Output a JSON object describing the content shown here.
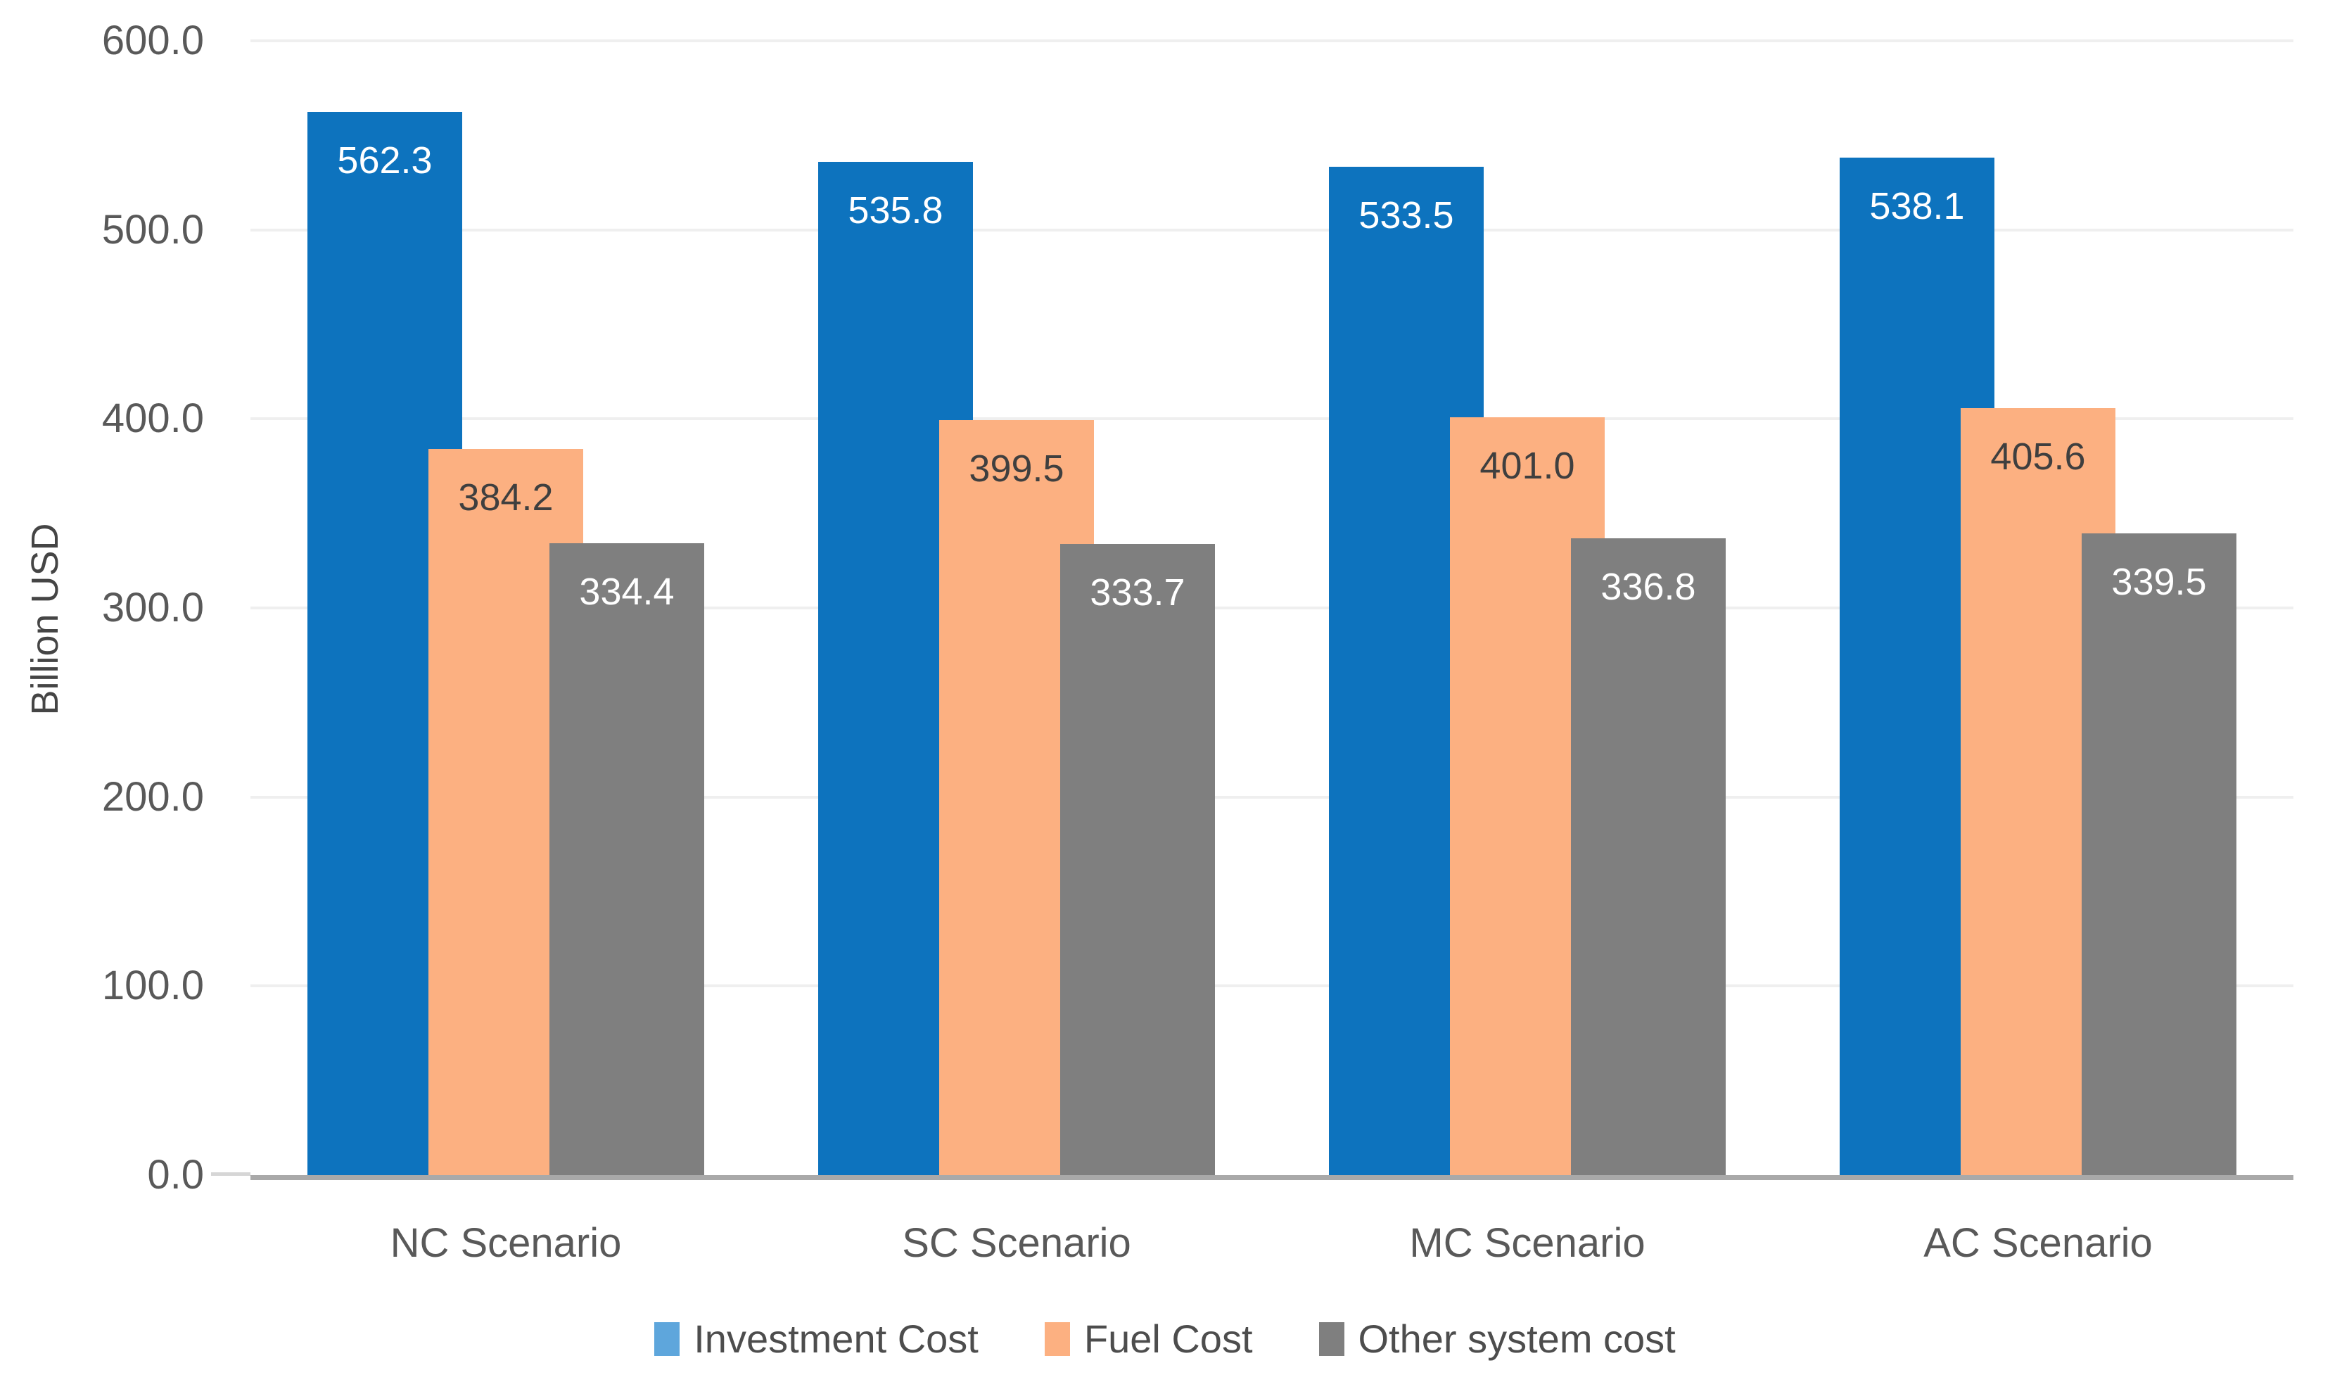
{
  "chart_data": {
    "type": "bar",
    "title": "",
    "ylabel": "Billion USD",
    "xlabel": "",
    "ylim": [
      0,
      600
    ],
    "ytick_step": 100,
    "ytick_labels": [
      "0.0",
      "100.0",
      "200.0",
      "300.0",
      "400.0",
      "500.0",
      "600.0"
    ],
    "grid": true,
    "legend_position": "bottom",
    "categories": [
      "NC Scenario",
      "SC Scenario",
      "MC Scenario",
      "AC Scenario"
    ],
    "series": [
      {
        "name": "Investment Cost",
        "color": "#0d73be",
        "legend_swatch_color": "#5ea6dc",
        "label_color": "#ffffff",
        "values": [
          562.3,
          535.8,
          533.5,
          538.1
        ]
      },
      {
        "name": "Fuel Cost",
        "color": "#fcb081",
        "legend_swatch_color": "#fcb081",
        "label_color": "#3f3f3f",
        "values": [
          384.2,
          399.5,
          401.0,
          405.6
        ]
      },
      {
        "name": "Other system cost",
        "color": "#7f7f7f",
        "legend_swatch_color": "#7f7f7f",
        "label_color": "#ffffff",
        "values": [
          334.4,
          333.7,
          336.8,
          339.5
        ]
      }
    ]
  }
}
